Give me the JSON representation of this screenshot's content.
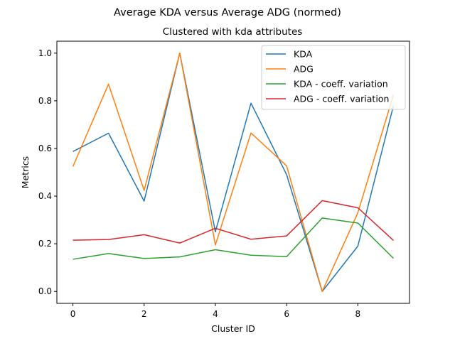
{
  "chart_data": {
    "type": "line",
    "title": "Average KDA versus Average ADG (normed)",
    "subtitle": "Clustered with kda attributes",
    "xlabel": "Cluster ID",
    "ylabel": "Metrics",
    "x": [
      0,
      1,
      2,
      3,
      4,
      5,
      6,
      7,
      8,
      9
    ],
    "xlim": [
      -0.45,
      9.45
    ],
    "ylim": [
      -0.05,
      1.05
    ],
    "xticks": [
      0,
      2,
      4,
      6,
      8
    ],
    "yticks": [
      0.0,
      0.2,
      0.4,
      0.6,
      0.8,
      1.0
    ],
    "xtick_labels": [
      "0",
      "2",
      "4",
      "6",
      "8"
    ],
    "ytick_labels": [
      "0.0",
      "0.2",
      "0.4",
      "0.6",
      "0.8",
      "1.0"
    ],
    "grid": false,
    "legend_position": "top-right",
    "series": [
      {
        "name": "KDA",
        "color": "#1f77b4",
        "values": [
          0.587,
          0.664,
          0.379,
          1.0,
          0.25,
          0.79,
          0.49,
          0.0,
          0.19,
          0.78
        ]
      },
      {
        "name": "ADG",
        "color": "#ff7f0e",
        "values": [
          0.524,
          0.87,
          0.424,
          1.0,
          0.195,
          0.665,
          0.527,
          0.0,
          0.33,
          0.825
        ]
      },
      {
        "name": "KDA - coeff. variation",
        "color": "#2ca02c",
        "values": [
          0.135,
          0.159,
          0.138,
          0.145,
          0.175,
          0.152,
          0.146,
          0.308,
          0.287,
          0.139
        ]
      },
      {
        "name": "ADG - coeff. variation",
        "color": "#d62728",
        "values": [
          0.215,
          0.218,
          0.238,
          0.203,
          0.265,
          0.219,
          0.233,
          0.381,
          0.351,
          0.214
        ]
      }
    ]
  }
}
